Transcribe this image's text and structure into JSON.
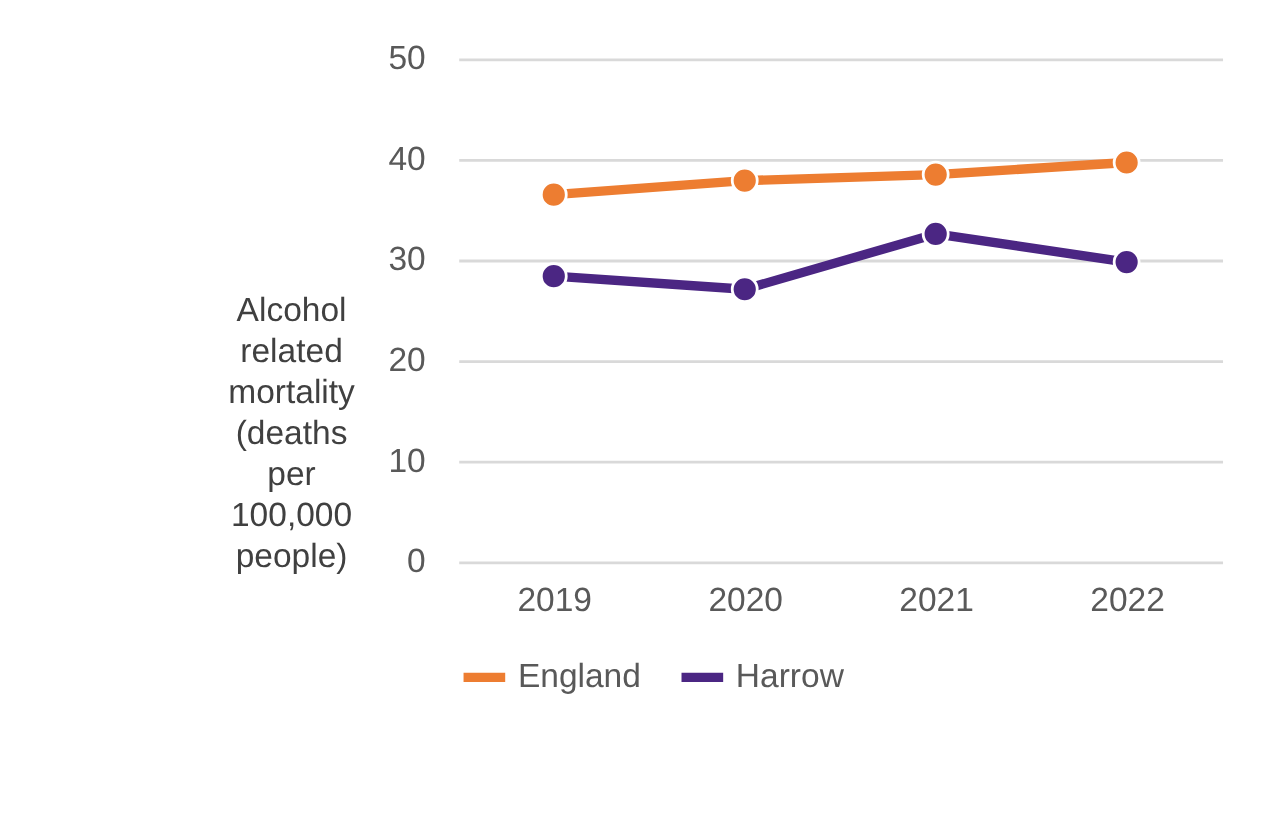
{
  "chart_data": {
    "type": "line",
    "ylabel": "Alcohol related mortality (deaths per 100,000 people)",
    "categories": [
      "2019",
      "2020",
      "2021",
      "2022"
    ],
    "series": [
      {
        "name": "England",
        "color": "#ed7d31",
        "values": [
          36.5,
          37.9,
          38.5,
          39.7
        ]
      },
      {
        "name": "Harrow",
        "color": "#4b2683",
        "values": [
          28.4,
          27.1,
          32.6,
          29.8
        ]
      }
    ],
    "ylim": [
      0,
      50
    ],
    "yticks": [
      0,
      10,
      20,
      30,
      40,
      50
    ],
    "grid": "y",
    "legend": "bottom",
    "marker": "circle",
    "line_style": "solid"
  }
}
